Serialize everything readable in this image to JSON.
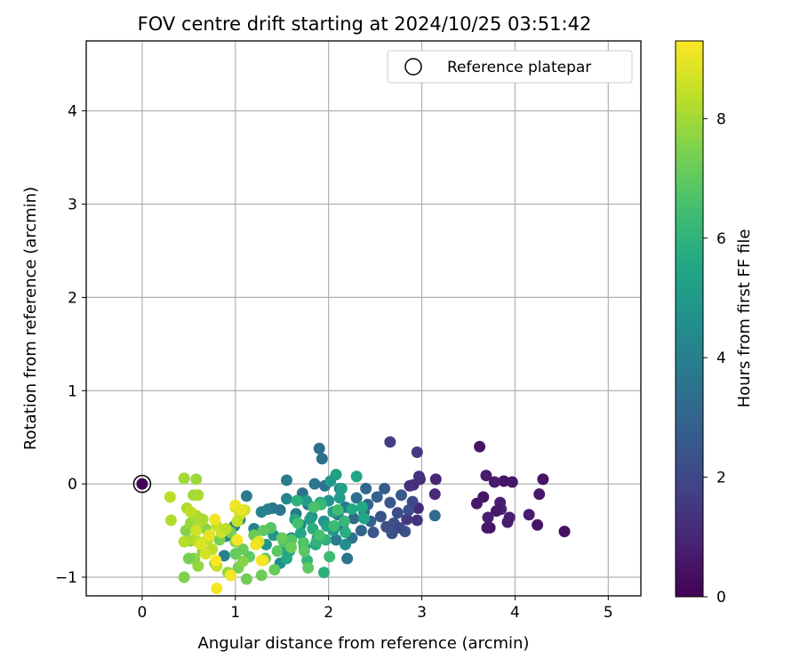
{
  "chart_data": {
    "type": "scatter",
    "title": "FOV centre drift starting at 2024/10/25 03:51:42",
    "xlabel": "Angular distance from reference (arcmin)",
    "ylabel": "Rotation from reference (arcmin)",
    "xlim": [
      -0.6,
      5.35
    ],
    "ylim": [
      -1.2,
      4.75
    ],
    "xticks": [
      0,
      1,
      2,
      3,
      4,
      5
    ],
    "yticks": [
      -1,
      0,
      1,
      2,
      3,
      4
    ],
    "grid": true,
    "legend": {
      "placement": "top-right",
      "entries": [
        "Reference platepar"
      ]
    },
    "colorbar": {
      "label": "Hours from first FF file",
      "colormap": "viridis",
      "range": [
        0,
        9.3
      ],
      "ticks": [
        0,
        2,
        4,
        6,
        8
      ]
    },
    "reference_point": {
      "x": 0,
      "y": 0,
      "label": "Reference platepar"
    },
    "series": [
      {
        "color_by": "hours",
        "points": [
          {
            "x": 4.53,
            "y": -0.51,
            "h": 0.4
          },
          {
            "x": 4.3,
            "y": 0.05,
            "h": 0.5
          },
          {
            "x": 4.26,
            "y": -0.11,
            "h": 0.6
          },
          {
            "x": 4.24,
            "y": -0.44,
            "h": 0.5
          },
          {
            "x": 4.15,
            "y": -0.33,
            "h": 0.7
          },
          {
            "x": 3.97,
            "y": 0.02,
            "h": 0.6
          },
          {
            "x": 3.94,
            "y": -0.36,
            "h": 0.8
          },
          {
            "x": 3.92,
            "y": -0.41,
            "h": 0.7
          },
          {
            "x": 3.88,
            "y": 0.03,
            "h": 0.5
          },
          {
            "x": 3.85,
            "y": -0.27,
            "h": 0.9
          },
          {
            "x": 3.84,
            "y": -0.2,
            "h": 0.8
          },
          {
            "x": 3.8,
            "y": -0.29,
            "h": 0.6
          },
          {
            "x": 3.78,
            "y": 0.02,
            "h": 0.7
          },
          {
            "x": 3.73,
            "y": -0.47,
            "h": 0.5
          },
          {
            "x": 3.7,
            "y": -0.47,
            "h": 0.6
          },
          {
            "x": 3.71,
            "y": -0.36,
            "h": 0.8
          },
          {
            "x": 3.69,
            "y": 0.09,
            "h": 0.7
          },
          {
            "x": 3.66,
            "y": -0.14,
            "h": 0.5
          },
          {
            "x": 3.59,
            "y": -0.21,
            "h": 0.6
          },
          {
            "x": 3.62,
            "y": 0.4,
            "h": 0.5
          },
          {
            "x": 3.15,
            "y": 0.05,
            "h": 1.0
          },
          {
            "x": 3.14,
            "y": -0.11,
            "h": 1.1
          },
          {
            "x": 2.98,
            "y": 0.05,
            "h": 1.2
          },
          {
            "x": 2.97,
            "y": 0.08,
            "h": 1.3
          },
          {
            "x": 2.96,
            "y": -0.26,
            "h": 1.1
          },
          {
            "x": 2.95,
            "y": -0.39,
            "h": 1.4
          },
          {
            "x": 2.91,
            "y": -0.01,
            "h": 1.2
          },
          {
            "x": 2.87,
            "y": -0.02,
            "h": 1.3
          },
          {
            "x": 2.84,
            "y": -0.38,
            "h": 1.5
          },
          {
            "x": 2.95,
            "y": 0.34,
            "h": 1.6
          },
          {
            "x": 2.66,
            "y": 0.45,
            "h": 1.7
          },
          {
            "x": 3.14,
            "y": -0.34,
            "h": 3.2
          },
          {
            "x": 2.9,
            "y": -0.19,
            "h": 2.0
          },
          {
            "x": 2.86,
            "y": -0.28,
            "h": 2.2
          },
          {
            "x": 2.82,
            "y": -0.51,
            "h": 2.4
          },
          {
            "x": 2.78,
            "y": -0.12,
            "h": 2.6
          },
          {
            "x": 2.74,
            "y": -0.31,
            "h": 2.1
          },
          {
            "x": 2.7,
            "y": -0.42,
            "h": 2.3
          },
          {
            "x": 2.66,
            "y": -0.2,
            "h": 2.5
          },
          {
            "x": 2.62,
            "y": -0.46,
            "h": 2.2
          },
          {
            "x": 2.6,
            "y": -0.05,
            "h": 2.7
          },
          {
            "x": 2.56,
            "y": -0.35,
            "h": 2.4
          },
          {
            "x": 2.52,
            "y": -0.14,
            "h": 2.8
          },
          {
            "x": 2.48,
            "y": -0.52,
            "h": 2.5
          },
          {
            "x": 2.45,
            "y": -0.4,
            "h": 2.9
          },
          {
            "x": 2.42,
            "y": -0.22,
            "h": 3.0
          },
          {
            "x": 2.68,
            "y": -0.53,
            "h": 2.3
          },
          {
            "x": 2.76,
            "y": -0.47,
            "h": 2.1
          },
          {
            "x": 2.4,
            "y": -0.05,
            "h": 3.1
          },
          {
            "x": 2.38,
            "y": -0.3,
            "h": 3.3
          },
          {
            "x": 2.35,
            "y": -0.5,
            "h": 3.0
          },
          {
            "x": 2.3,
            "y": -0.15,
            "h": 3.4
          },
          {
            "x": 2.27,
            "y": -0.37,
            "h": 3.2
          },
          {
            "x": 2.25,
            "y": -0.58,
            "h": 3.5
          },
          {
            "x": 2.2,
            "y": -0.8,
            "h": 3.6
          },
          {
            "x": 2.18,
            "y": -0.25,
            "h": 3.8
          },
          {
            "x": 2.15,
            "y": -0.45,
            "h": 3.7
          },
          {
            "x": 2.12,
            "y": -0.05,
            "h": 3.9
          },
          {
            "x": 2.1,
            "y": -0.33,
            "h": 4.0
          },
          {
            "x": 2.08,
            "y": -0.6,
            "h": 3.8
          },
          {
            "x": 1.96,
            "y": -0.02,
            "h": 3.5
          },
          {
            "x": 1.9,
            "y": 0.38,
            "h": 3.3
          },
          {
            "x": 1.93,
            "y": 0.27,
            "h": 3.4
          },
          {
            "x": 1.85,
            "y": 0.0,
            "h": 3.6
          },
          {
            "x": 1.78,
            "y": -0.22,
            "h": 3.7
          },
          {
            "x": 1.72,
            "y": -0.1,
            "h": 3.5
          },
          {
            "x": 1.65,
            "y": -0.32,
            "h": 3.8
          },
          {
            "x": 1.55,
            "y": 0.04,
            "h": 3.9
          },
          {
            "x": 1.48,
            "y": -0.28,
            "h": 3.6
          },
          {
            "x": 1.4,
            "y": -0.26,
            "h": 3.7
          },
          {
            "x": 1.35,
            "y": -0.27,
            "h": 3.9
          },
          {
            "x": 1.28,
            "y": -0.3,
            "h": 4.0
          },
          {
            "x": 1.2,
            "y": -0.48,
            "h": 4.1
          },
          {
            "x": 1.12,
            "y": -0.13,
            "h": 3.8
          },
          {
            "x": 1.05,
            "y": -0.38,
            "h": 4.2
          },
          {
            "x": 0.99,
            "y": -0.45,
            "h": 4.0
          },
          {
            "x": 0.9,
            "y": -0.56,
            "h": 4.3
          },
          {
            "x": 0.88,
            "y": -0.77,
            "h": 4.1
          },
          {
            "x": 1.55,
            "y": -0.16,
            "h": 4.2
          },
          {
            "x": 1.6,
            "y": -0.58,
            "h": 4.3
          },
          {
            "x": 1.7,
            "y": -0.44,
            "h": 4.4
          },
          {
            "x": 1.74,
            "y": -0.68,
            "h": 4.5
          },
          {
            "x": 1.82,
            "y": -0.35,
            "h": 4.6
          },
          {
            "x": 1.88,
            "y": -0.58,
            "h": 4.4
          },
          {
            "x": 1.95,
            "y": -0.4,
            "h": 4.7
          },
          {
            "x": 2.0,
            "y": -0.18,
            "h": 4.8
          },
          {
            "x": 2.05,
            "y": -0.5,
            "h": 4.9
          },
          {
            "x": 2.18,
            "y": -0.65,
            "h": 4.6
          },
          {
            "x": 1.48,
            "y": -0.85,
            "h": 4.6
          },
          {
            "x": 1.52,
            "y": -0.7,
            "h": 4.7
          },
          {
            "x": 1.41,
            "y": -0.55,
            "h": 4.8
          },
          {
            "x": 1.33,
            "y": -0.65,
            "h": 4.9
          },
          {
            "x": 2.02,
            "y": 0.03,
            "h": 5.0
          },
          {
            "x": 2.08,
            "y": 0.1,
            "h": 5.2
          },
          {
            "x": 2.12,
            "y": -0.15,
            "h": 5.1
          },
          {
            "x": 2.14,
            "y": -0.05,
            "h": 5.3
          },
          {
            "x": 2.3,
            "y": 0.08,
            "h": 5.4
          },
          {
            "x": 2.36,
            "y": -0.25,
            "h": 5.6
          },
          {
            "x": 2.38,
            "y": -0.37,
            "h": 5.5
          },
          {
            "x": 2.05,
            "y": -0.3,
            "h": 5.2
          },
          {
            "x": 1.98,
            "y": -0.45,
            "h": 5.4
          },
          {
            "x": 1.91,
            "y": -0.2,
            "h": 5.3
          },
          {
            "x": 1.86,
            "y": -0.65,
            "h": 5.5
          },
          {
            "x": 1.8,
            "y": -0.38,
            "h": 5.2
          },
          {
            "x": 1.76,
            "y": -0.18,
            "h": 5.1
          },
          {
            "x": 1.7,
            "y": -0.53,
            "h": 5.6
          },
          {
            "x": 1.64,
            "y": -0.38,
            "h": 5.4
          },
          {
            "x": 1.58,
            "y": -0.72,
            "h": 5.7
          },
          {
            "x": 1.55,
            "y": -0.8,
            "h": 5.6
          },
          {
            "x": 2.18,
            "y": -0.52,
            "h": 5.8
          },
          {
            "x": 2.25,
            "y": -0.27,
            "h": 5.6
          },
          {
            "x": 1.95,
            "y": -0.95,
            "h": 5.9
          },
          {
            "x": 1.87,
            "y": -0.62,
            "h": 6.0
          },
          {
            "x": 1.83,
            "y": -0.48,
            "h": 5.8
          },
          {
            "x": 1.77,
            "y": -0.82,
            "h": 6.1
          },
          {
            "x": 1.66,
            "y": -0.18,
            "h": 5.9
          },
          {
            "x": 1.92,
            "y": -0.22,
            "h": 6.2
          },
          {
            "x": 1.97,
            "y": -0.6,
            "h": 6.0
          },
          {
            "x": 2.06,
            "y": -0.45,
            "h": 6.3
          },
          {
            "x": 2.1,
            "y": -0.28,
            "h": 6.4
          },
          {
            "x": 2.17,
            "y": -0.4,
            "h": 6.2
          },
          {
            "x": 2.01,
            "y": -0.78,
            "h": 6.3
          },
          {
            "x": 1.9,
            "y": -0.55,
            "h": 6.5
          },
          {
            "x": 1.84,
            "y": -0.25,
            "h": 6.6
          },
          {
            "x": 1.73,
            "y": -0.63,
            "h": 6.7
          },
          {
            "x": 1.67,
            "y": -0.42,
            "h": 6.5
          },
          {
            "x": 1.6,
            "y": -0.6,
            "h": 6.8
          },
          {
            "x": 1.52,
            "y": -0.62,
            "h": 6.7
          },
          {
            "x": 1.45,
            "y": -0.72,
            "h": 6.9
          },
          {
            "x": 1.38,
            "y": -0.47,
            "h": 6.8
          },
          {
            "x": 1.3,
            "y": -0.5,
            "h": 7.0
          },
          {
            "x": 1.25,
            "y": -0.62,
            "h": 7.1
          },
          {
            "x": 1.2,
            "y": -0.55,
            "h": 7.2
          },
          {
            "x": 1.15,
            "y": -0.78,
            "h": 7.0
          },
          {
            "x": 1.12,
            "y": -1.02,
            "h": 7.3
          },
          {
            "x": 1.08,
            "y": -0.7,
            "h": 7.2
          },
          {
            "x": 1.03,
            "y": -0.9,
            "h": 7.4
          },
          {
            "x": 1.0,
            "y": -0.75,
            "h": 7.1
          },
          {
            "x": 0.95,
            "y": -0.52,
            "h": 7.3
          },
          {
            "x": 1.28,
            "y": -0.98,
            "h": 7.2
          },
          {
            "x": 1.32,
            "y": -0.8,
            "h": 7.0
          },
          {
            "x": 1.42,
            "y": -0.92,
            "h": 7.1
          },
          {
            "x": 1.78,
            "y": -0.9,
            "h": 7.0
          },
          {
            "x": 1.74,
            "y": -0.72,
            "h": 6.9
          },
          {
            "x": 1.6,
            "y": -0.68,
            "h": 7.2
          },
          {
            "x": 1.5,
            "y": -0.58,
            "h": 7.1
          },
          {
            "x": 0.83,
            "y": -0.6,
            "h": 7.4
          },
          {
            "x": 0.78,
            "y": -0.85,
            "h": 7.6
          },
          {
            "x": 0.72,
            "y": -0.55,
            "h": 7.5
          },
          {
            "x": 0.68,
            "y": -0.48,
            "h": 7.7
          },
          {
            "x": 0.65,
            "y": -0.72,
            "h": 7.6
          },
          {
            "x": 0.6,
            "y": -0.88,
            "h": 7.8
          },
          {
            "x": 0.56,
            "y": -0.8,
            "h": 7.7
          },
          {
            "x": 0.52,
            "y": -0.61,
            "h": 7.5
          },
          {
            "x": 0.5,
            "y": -0.8,
            "h": 7.4
          },
          {
            "x": 0.47,
            "y": -0.5,
            "h": 7.6
          },
          {
            "x": 0.45,
            "y": -1.0,
            "h": 7.5
          },
          {
            "x": 1.08,
            "y": -0.83,
            "h": 7.6
          },
          {
            "x": 1.0,
            "y": -0.62,
            "h": 7.7
          },
          {
            "x": 0.92,
            "y": -0.95,
            "h": 7.8
          },
          {
            "x": 0.58,
            "y": 0.05,
            "h": 7.9
          },
          {
            "x": 0.55,
            "y": -0.12,
            "h": 8.0
          },
          {
            "x": 0.58,
            "y": -0.34,
            "h": 8.1
          },
          {
            "x": 0.52,
            "y": -0.42,
            "h": 7.9
          },
          {
            "x": 0.48,
            "y": -0.26,
            "h": 8.2
          },
          {
            "x": 0.45,
            "y": 0.06,
            "h": 8.0
          },
          {
            "x": 0.6,
            "y": -0.12,
            "h": 8.1
          },
          {
            "x": 0.62,
            "y": -0.4,
            "h": 8.2
          },
          {
            "x": 0.3,
            "y": -0.14,
            "h": 8.3
          },
          {
            "x": 0.31,
            "y": -0.39,
            "h": 8.2
          },
          {
            "x": 0.45,
            "y": -0.62,
            "h": 8.3
          },
          {
            "x": 0.52,
            "y": -0.3,
            "h": 8.4
          },
          {
            "x": 0.55,
            "y": -0.6,
            "h": 8.2
          },
          {
            "x": 0.6,
            "y": -0.62,
            "h": 8.3
          },
          {
            "x": 0.65,
            "y": -0.38,
            "h": 8.1
          },
          {
            "x": 0.7,
            "y": -0.6,
            "h": 8.4
          },
          {
            "x": 0.75,
            "y": -0.7,
            "h": 8.3
          },
          {
            "x": 0.8,
            "y": -0.45,
            "h": 8.5
          },
          {
            "x": 0.85,
            "y": -0.52,
            "h": 8.6
          },
          {
            "x": 0.9,
            "y": -0.48,
            "h": 8.4
          },
          {
            "x": 1.05,
            "y": -0.33,
            "h": 8.5
          },
          {
            "x": 1.0,
            "y": -0.25,
            "h": 8.6
          },
          {
            "x": 1.1,
            "y": -0.28,
            "h": 8.7
          },
          {
            "x": 1.02,
            "y": -0.4,
            "h": 8.5
          },
          {
            "x": 0.95,
            "y": -0.98,
            "h": 8.6
          },
          {
            "x": 0.68,
            "y": -0.75,
            "h": 8.7
          },
          {
            "x": 0.63,
            "y": -0.65,
            "h": 8.8
          },
          {
            "x": 0.58,
            "y": -0.5,
            "h": 8.6
          },
          {
            "x": 1.22,
            "y": -0.65,
            "h": 8.7
          },
          {
            "x": 1.3,
            "y": -0.82,
            "h": 8.8
          },
          {
            "x": 1.25,
            "y": -0.62,
            "h": 8.9
          },
          {
            "x": 0.8,
            "y": -0.88,
            "h": 8.5
          },
          {
            "x": 0.78,
            "y": -0.38,
            "h": 9.1
          },
          {
            "x": 1.02,
            "y": -0.6,
            "h": 9.2
          },
          {
            "x": 1.0,
            "y": -0.23,
            "h": 9.1
          },
          {
            "x": 1.06,
            "y": -0.28,
            "h": 9.0
          },
          {
            "x": 0.95,
            "y": -0.98,
            "h": 9.2
          },
          {
            "x": 0.79,
            "y": -0.82,
            "h": 9.3
          },
          {
            "x": 0.8,
            "y": -1.12,
            "h": 9.2
          },
          {
            "x": 1.22,
            "y": -0.65,
            "h": 9.1
          },
          {
            "x": 1.28,
            "y": -0.82,
            "h": 9.2
          },
          {
            "x": 0.72,
            "y": -0.55,
            "h": 9.0
          }
        ]
      }
    ],
    "first_point": {
      "x": 0,
      "y": 0,
      "h": 0.1
    }
  }
}
